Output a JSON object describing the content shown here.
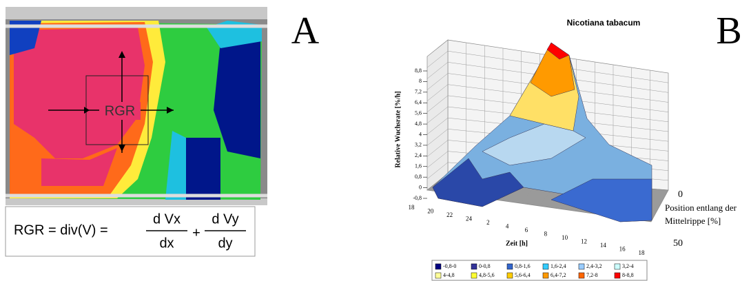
{
  "panel_a": {
    "label": "A",
    "center_label": "RGR",
    "formula": {
      "lhs": "RGR = div(V) =",
      "term1": {
        "numerator": "d Vx",
        "denominator": "dx"
      },
      "operator": "+",
      "term2": {
        "numerator": "d Vy",
        "denominator": "dy"
      }
    }
  },
  "panel_b": {
    "label": "B",
    "title": "Nicotiana tabacum",
    "y_axis_label": "Relative Wuchsrate [%/h]",
    "y_ticks": [
      "8,8",
      "8",
      "7,2",
      "6,4",
      "5,6",
      "4,8",
      "4",
      "3,2",
      "2,4",
      "1,6",
      "0,8",
      "0",
      "-0,8"
    ],
    "x_axis_label": "Zeit [h]",
    "x_ticks": [
      "18",
      "20",
      "22",
      "24",
      "2",
      "4",
      "6",
      "8",
      "10",
      "12",
      "14",
      "16",
      "18"
    ],
    "depth_axis_label": [
      "Position entlang der",
      "Mittelrippe [%]"
    ],
    "depth_ticks": [
      "0",
      "50"
    ],
    "legend": [
      {
        "label": "-0,8-0",
        "color": "#000080"
      },
      {
        "label": "0-0,8",
        "color": "#333399"
      },
      {
        "label": "0,8-1,6",
        "color": "#3366cc"
      },
      {
        "label": "1,6-2,4",
        "color": "#33ccff"
      },
      {
        "label": "2,4-3,2",
        "color": "#99ccff"
      },
      {
        "label": "3,2-4",
        "color": "#ccffff"
      },
      {
        "label": "4-4,8",
        "color": "#ffff99"
      },
      {
        "label": "4,8-5,6",
        "color": "#ffff33"
      },
      {
        "label": "5,6-6,4",
        "color": "#ffcc00"
      },
      {
        "label": "6,4-7,2",
        "color": "#ff9900"
      },
      {
        "label": "7,2-8",
        "color": "#ff6600"
      },
      {
        "label": "8-8,8",
        "color": "#ff0000"
      }
    ]
  }
}
